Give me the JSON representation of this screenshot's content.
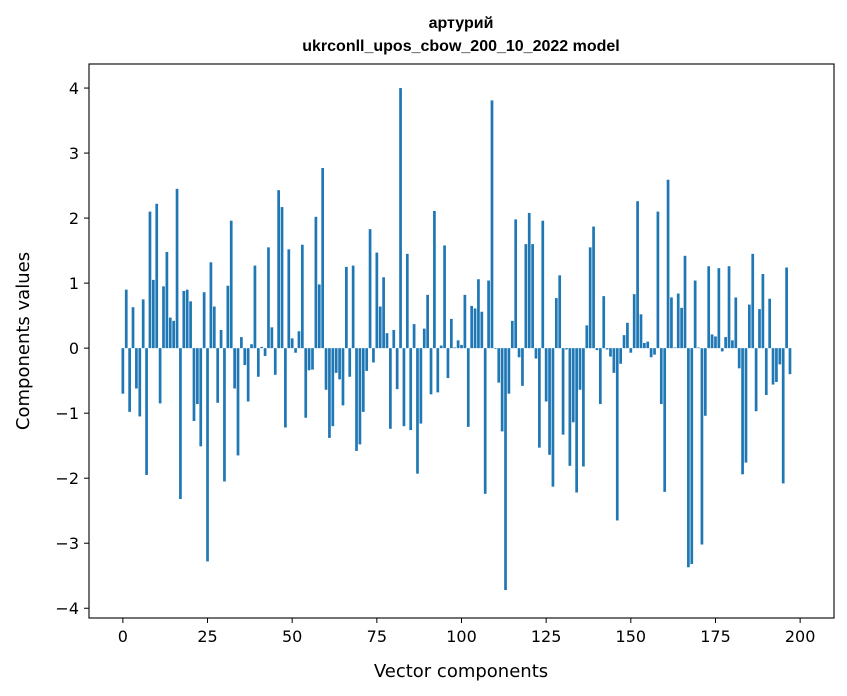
{
  "chart_data": {
    "type": "bar",
    "title": "артурий",
    "subtitle": "ukrconll_upos_cbow_200_10_2022 model",
    "xlabel": "Vector components",
    "ylabel": "Components values",
    "xlim": [
      -10,
      210
    ],
    "ylim": [
      -4.15,
      4.37
    ],
    "xticks": [
      0,
      25,
      50,
      75,
      100,
      125,
      150,
      175,
      200
    ],
    "yticks": [
      -4,
      -3,
      -2,
      -1,
      0,
      1,
      2,
      3,
      4
    ],
    "bar_color": "#1f77b4",
    "values": [
      -0.7,
      0.9,
      -0.98,
      0.63,
      -0.62,
      -1.05,
      0.75,
      -1.95,
      2.1,
      1.05,
      2.22,
      -0.85,
      0.95,
      1.48,
      0.47,
      0.42,
      2.45,
      -2.32,
      0.88,
      0.9,
      0.72,
      -1.12,
      -0.86,
      -1.51,
      0.86,
      -3.28,
      1.32,
      0.64,
      -0.84,
      0.28,
      -2.05,
      0.96,
      1.96,
      -0.62,
      -1.65,
      0.17,
      -0.26,
      -0.82,
      0.06,
      1.27,
      -0.44,
      0.02,
      -0.12,
      1.55,
      0.32,
      -0.41,
      2.43,
      2.17,
      -1.22,
      1.52,
      0.15,
      -0.07,
      0.26,
      1.59,
      -1.07,
      -0.34,
      -0.33,
      2.02,
      0.98,
      2.77,
      -0.64,
      -1.38,
      -1.2,
      -0.38,
      -0.48,
      -0.88,
      1.25,
      -0.44,
      1.27,
      -1.58,
      -1.48,
      -0.98,
      -0.35,
      1.83,
      -0.22,
      1.47,
      0.64,
      1.09,
      0.23,
      -1.24,
      0.28,
      -0.63,
      4.0,
      -1.2,
      1.45,
      -1.26,
      0.37,
      -1.93,
      -1.16,
      0.3,
      0.82,
      -0.71,
      2.11,
      -0.68,
      0.04,
      1.58,
      -0.46,
      0.45,
      0.01,
      0.12,
      0.05,
      0.82,
      -1.21,
      0.65,
      0.61,
      1.06,
      0.56,
      -2.24,
      1.04,
      3.81,
      -0.01,
      -0.53,
      -1.28,
      -3.72,
      -0.7,
      0.42,
      1.98,
      -0.14,
      -0.58,
      1.6,
      2.08,
      1.6,
      -0.16,
      -1.53,
      1.96,
      -0.82,
      -1.64,
      -2.13,
      0.77,
      1.12,
      -1.33,
      -0.02,
      -1.81,
      -1.14,
      -2.22,
      -0.64,
      -1.82,
      0.35,
      1.55,
      1.87,
      -0.03,
      -0.86,
      0.8,
      -0.02,
      -0.13,
      -0.38,
      -2.65,
      -0.24,
      0.2,
      0.39,
      -0.07,
      0.83,
      2.26,
      0.52,
      0.08,
      0.1,
      -0.14,
      -0.1,
      2.1,
      -0.86,
      -2.21,
      2.59,
      0.78,
      0.01,
      0.84,
      0.62,
      1.42,
      -3.37,
      -3.32,
      1.04,
      0.01,
      -3.02,
      -1.04,
      1.26,
      0.21,
      0.18,
      1.23,
      -0.05,
      0.17,
      1.26,
      0.12,
      0.78,
      -0.31,
      -1.94,
      -1.76,
      0.67,
      1.45,
      -0.97,
      0.6,
      1.14,
      -0.72,
      0.76,
      -0.56,
      -0.52,
      -0.25,
      -2.08,
      1.24,
      -0.4
    ]
  }
}
